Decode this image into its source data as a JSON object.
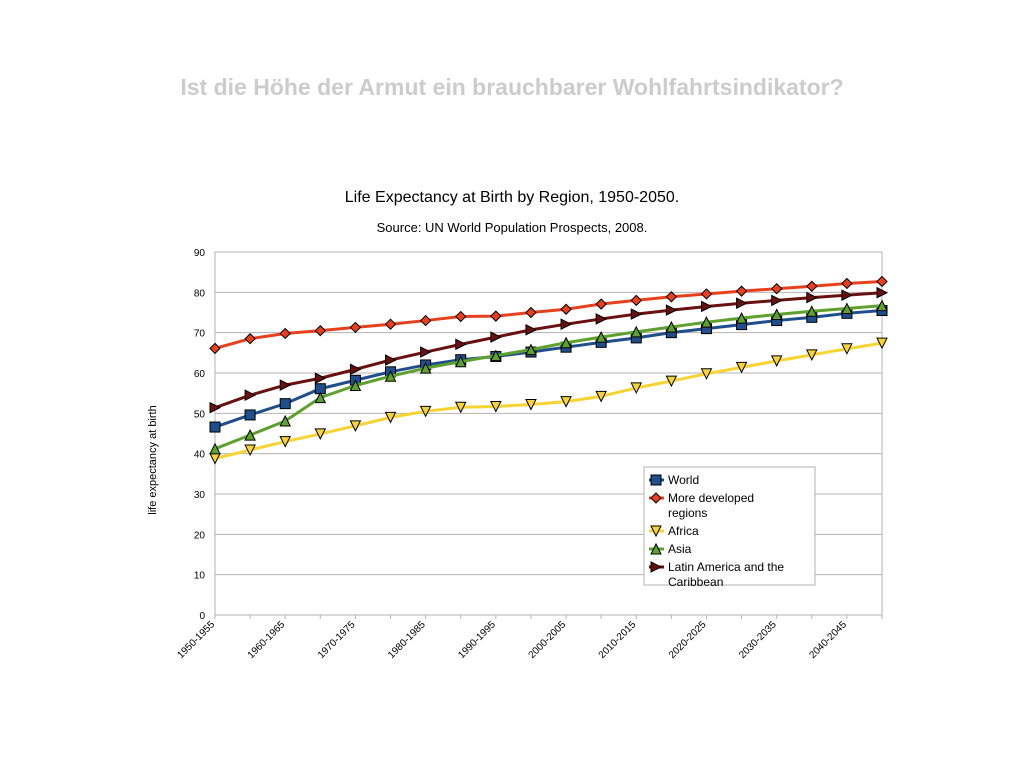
{
  "slide": {
    "title": "Ist die Höhe der Armut ein brauchbarer Wohlfahrtsindikator?"
  },
  "chart_data": {
    "type": "line",
    "title": "Life Expectancy at Birth by Region, 1950-2050.",
    "subtitle": "Source: UN World Population Prospects, 2008.",
    "xlabel": "",
    "ylabel": "life expectancy at birth",
    "ylim": [
      0,
      90
    ],
    "yticks": [
      0,
      10,
      20,
      30,
      40,
      50,
      60,
      70,
      80,
      90
    ],
    "grid": true,
    "legend_position": "bottom-right",
    "categories": [
      "1950-1955",
      "1955-1960",
      "1960-1965",
      "1965-1970",
      "1970-1975",
      "1975-1980",
      "1980-1985",
      "1985-1990",
      "1990-1995",
      "1995-2000",
      "2000-2005",
      "2005-2010",
      "2010-2015",
      "2015-2020",
      "2020-2025",
      "2025-2030",
      "2030-2035",
      "2035-2040",
      "2040-2045",
      "2045-2050"
    ],
    "tick_labels": [
      "1950-1955",
      "1960-1965",
      "1970-1975",
      "1980-1985",
      "1990-1995",
      "2000-2005",
      "2010-2015",
      "2020-2025",
      "2030-2035",
      "2040-2045"
    ],
    "series": [
      {
        "name": "World",
        "color": "#1f4e8c",
        "marker": "square",
        "values": [
          46.6,
          49.6,
          52.4,
          56.1,
          58.2,
          60.3,
          62.0,
          63.3,
          64.1,
          65.2,
          66.4,
          67.6,
          68.7,
          70.0,
          71.0,
          72.0,
          73.0,
          73.8,
          74.8,
          75.5
        ]
      },
      {
        "name": "More developed regions",
        "color": "#e8401c",
        "marker": "diamond",
        "values": [
          66.1,
          68.5,
          69.8,
          70.5,
          71.3,
          72.1,
          73.0,
          74.0,
          74.1,
          75.0,
          75.8,
          77.1,
          78.0,
          78.9,
          79.6,
          80.3,
          80.9,
          81.5,
          82.2,
          82.7
        ]
      },
      {
        "name": "Africa",
        "color": "#f7d431",
        "marker": "triangle-down",
        "values": [
          38.8,
          40.9,
          43.0,
          44.9,
          46.9,
          49.0,
          50.5,
          51.5,
          51.7,
          52.2,
          52.9,
          54.2,
          56.3,
          58.0,
          59.8,
          61.4,
          63.0,
          64.5,
          66.0,
          67.4
        ]
      },
      {
        "name": "Asia",
        "color": "#5ea12d",
        "marker": "triangle-up",
        "values": [
          41.2,
          44.6,
          48.1,
          53.9,
          56.9,
          59.2,
          61.2,
          62.8,
          64.3,
          65.8,
          67.5,
          68.9,
          70.2,
          71.4,
          72.6,
          73.6,
          74.5,
          75.3,
          76.0,
          76.7
        ]
      },
      {
        "name": "Latin America and the Caribbean",
        "color": "#6b1010",
        "marker": "triangle-right",
        "values": [
          51.4,
          54.5,
          57.0,
          58.7,
          60.9,
          63.2,
          65.2,
          67.1,
          68.9,
          70.7,
          72.1,
          73.4,
          74.6,
          75.6,
          76.5,
          77.3,
          78.0,
          78.7,
          79.3,
          79.9
        ]
      }
    ]
  }
}
